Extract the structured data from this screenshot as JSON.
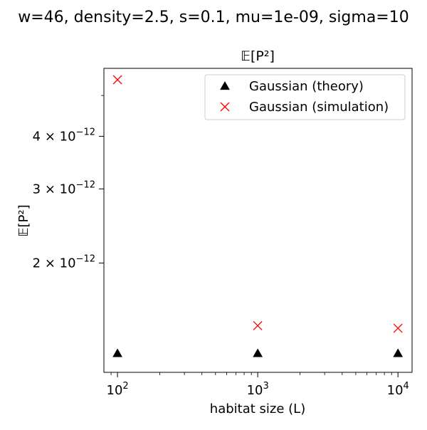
{
  "figure": {
    "suptitle": "w=46, density=2.5, s=0.1, mu=1e-09, sigma=10"
  },
  "chart_data": {
    "type": "scatter",
    "title": "𝔼[P²]",
    "xlabel": "habitat size (L)",
    "ylabel": "𝔼[P²]",
    "x_scale": "log",
    "y_scale": "log",
    "xlim": [
      80,
      12600
    ],
    "ylim": [
      1.1e-12,
      5.8e-12
    ],
    "x": [
      100,
      1000,
      10000
    ],
    "x_ticks": [
      {
        "value": 100,
        "mantissa": "10",
        "exp": "2"
      },
      {
        "value": 1000,
        "mantissa": "10",
        "exp": "3"
      },
      {
        "value": 10000,
        "mantissa": "10",
        "exp": "4"
      }
    ],
    "y_ticks": [
      {
        "value": 2e-12,
        "coef": "2",
        "mantissa": "10",
        "exp": "−12"
      },
      {
        "value": 3e-12,
        "coef": "3",
        "mantissa": "10",
        "exp": "−12"
      },
      {
        "value": 4e-12,
        "coef": "4",
        "mantissa": "10",
        "exp": "−12"
      }
    ],
    "grid": false,
    "legend_position": "top-right",
    "series": [
      {
        "name": "Gaussian (theory)",
        "marker": "triangle",
        "color": "#000000",
        "values": [
          1.22e-12,
          1.22e-12,
          1.22e-12
        ]
      },
      {
        "name": "Gaussian (simulation)",
        "marker": "x",
        "color": "#ff0000",
        "values": [
          5.45e-12,
          1.42e-12,
          1.4e-12
        ]
      }
    ]
  }
}
